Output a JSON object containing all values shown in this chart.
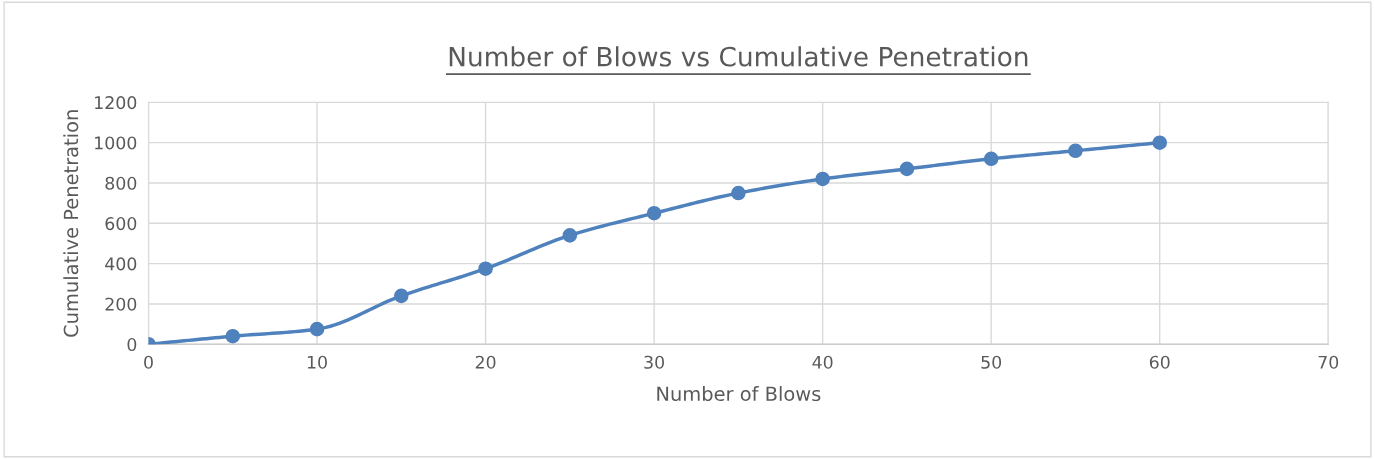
{
  "chart_data": {
    "type": "line",
    "title": "Number of Blows vs Cumulative Penetration",
    "xlabel": "Number of Blows",
    "ylabel": "Cumulative Penetration",
    "x": [
      0,
      5,
      10,
      15,
      20,
      25,
      30,
      35,
      40,
      45,
      50,
      55,
      60
    ],
    "series": [
      {
        "color": "#4f81bd",
        "values": [
          0,
          40,
          75,
          240,
          375,
          540,
          650,
          750,
          820,
          870,
          920,
          960,
          1000
        ]
      }
    ],
    "xlim": [
      0,
      70
    ],
    "xticks": [
      0,
      10,
      20,
      30,
      40,
      50,
      60,
      70
    ],
    "ylim": [
      0,
      1200
    ],
    "yticks": [
      0,
      200,
      400,
      600,
      800,
      1000,
      1200
    ],
    "grid": true,
    "marker": "circle",
    "line_style": "solid"
  }
}
